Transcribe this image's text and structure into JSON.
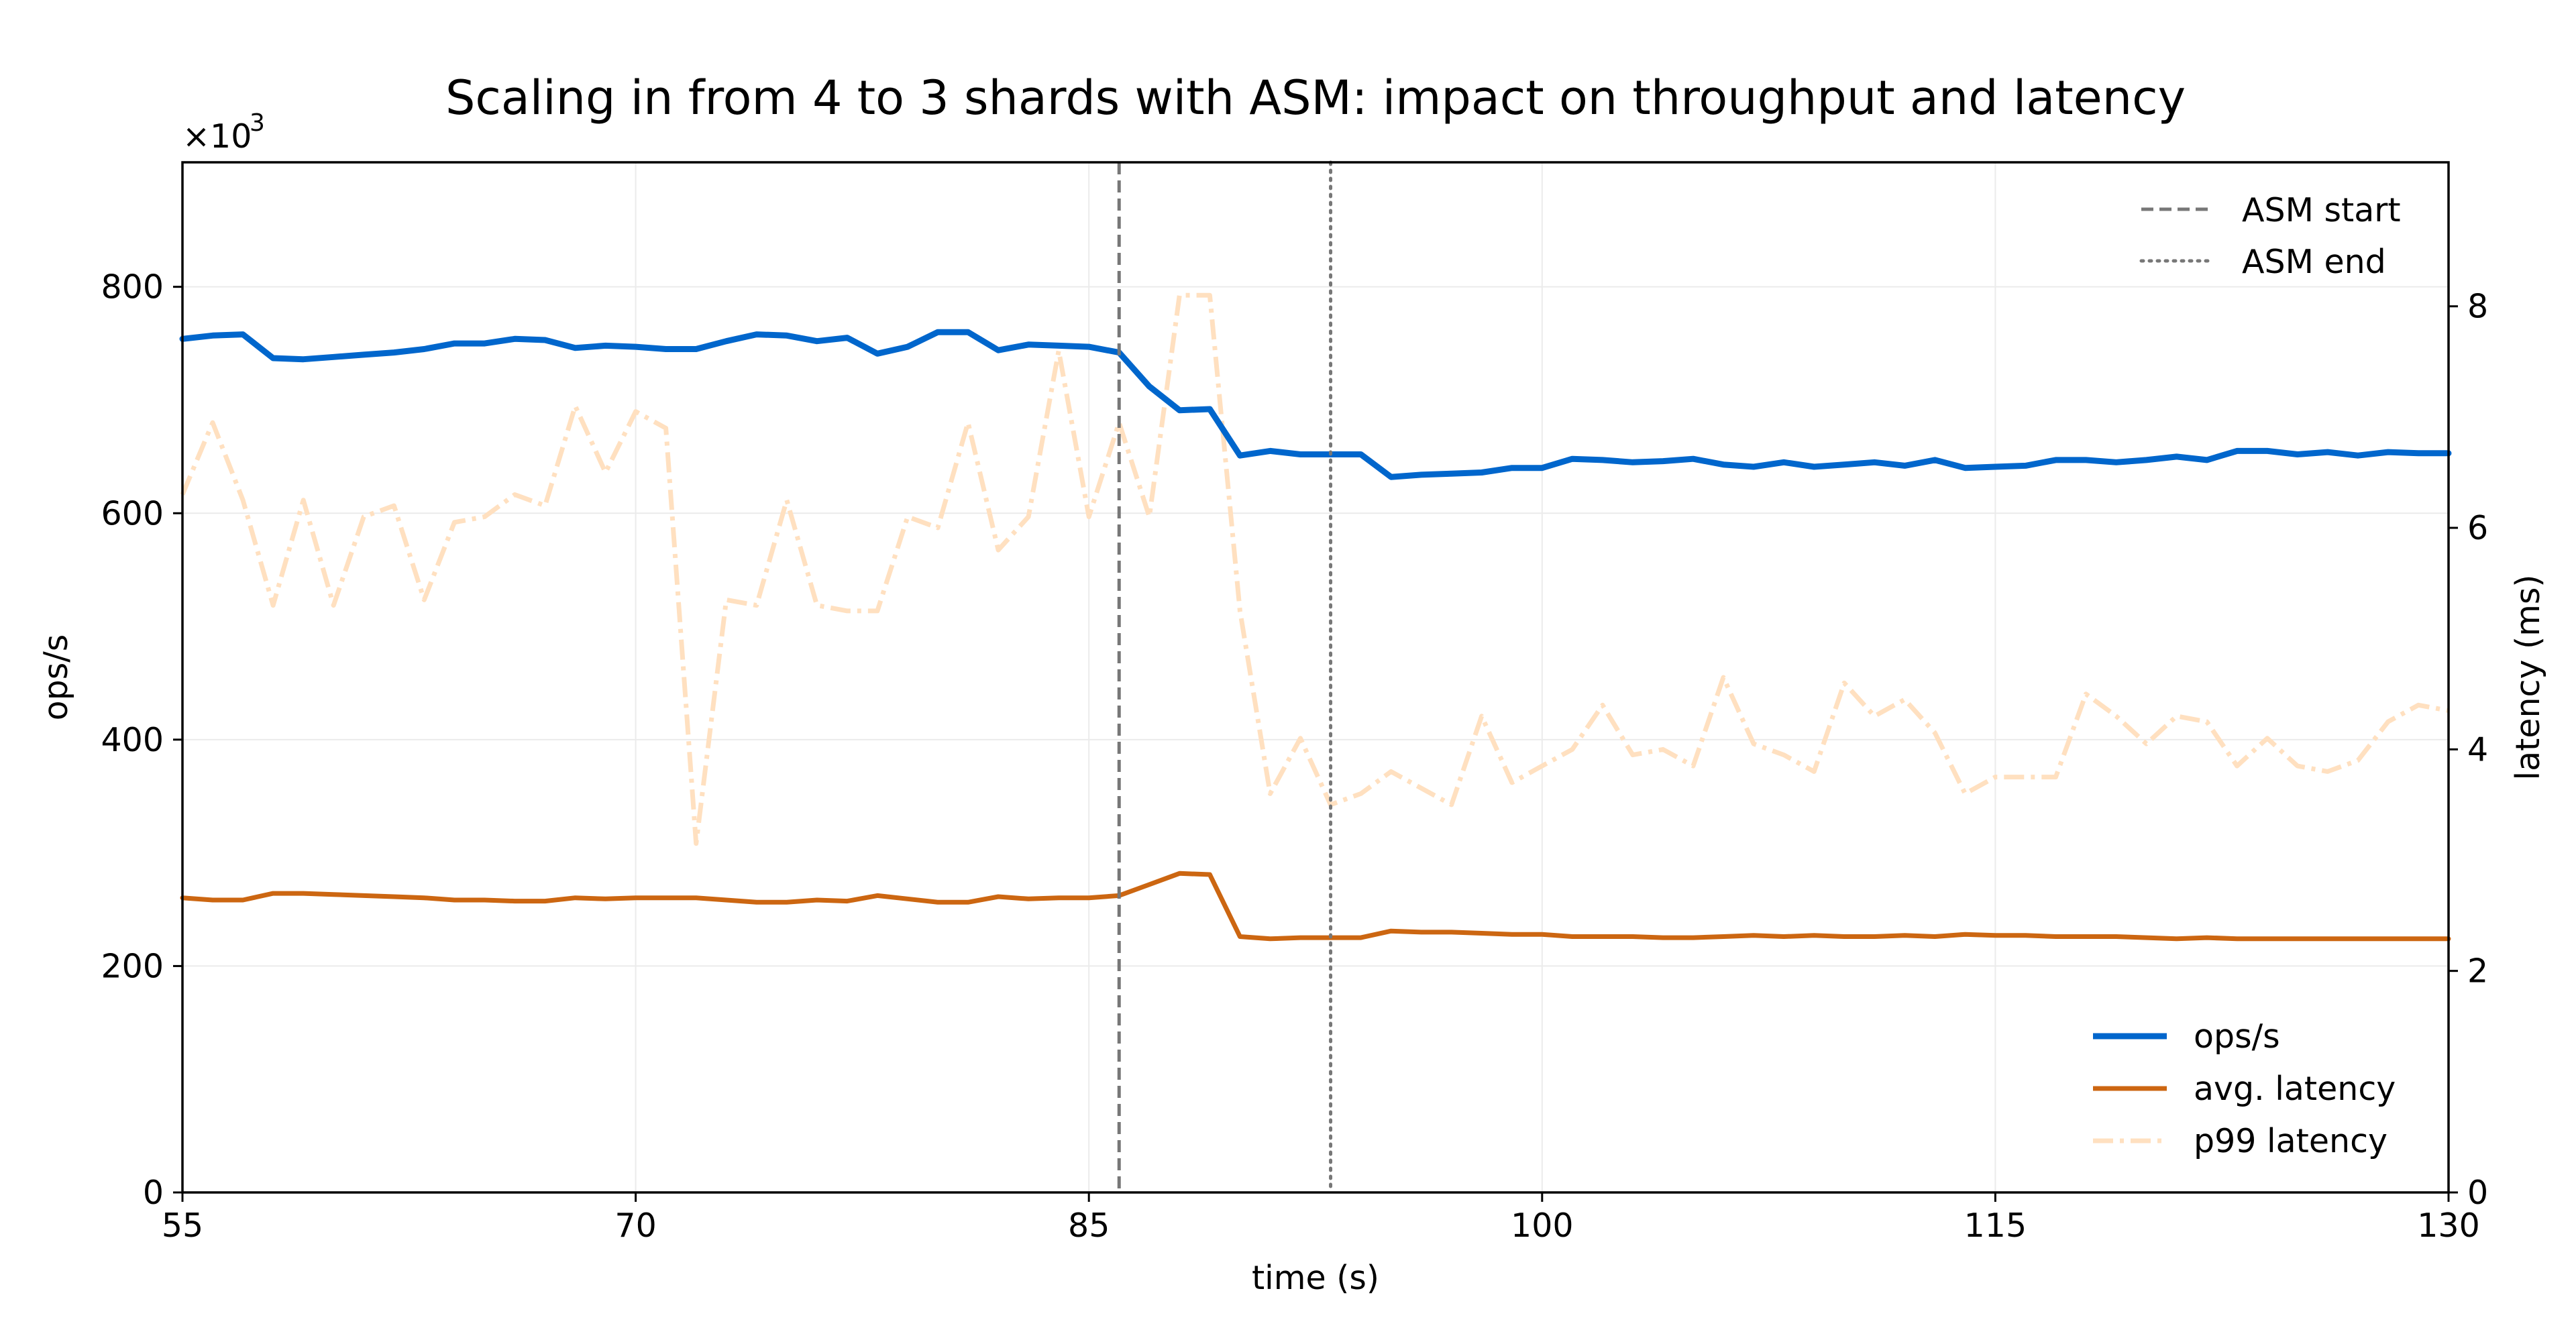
{
  "chart_data": {
    "type": "line",
    "title": "Scaling in from 4 to 3 shards with ASM: impact on throughput and latency",
    "xlabel": "time (s)",
    "ylabel_left": "ops/s",
    "ylabel_right": "latency (ms)",
    "left_axis_multiplier": "×10",
    "left_axis_multiplier_exp": "3",
    "xlim": [
      55,
      130
    ],
    "ylim_left": [
      0,
      910
    ],
    "ylim_right": [
      0,
      9.3
    ],
    "x_ticks": [
      55,
      70,
      85,
      100,
      115,
      130
    ],
    "y_left_ticks": [
      0,
      200,
      400,
      600,
      800
    ],
    "y_right_ticks": [
      0,
      2,
      4,
      6,
      8
    ],
    "grid": true,
    "colors": {
      "ops": "#0066cc",
      "avg": "#cc6611",
      "p99": "#ffe0c0",
      "asm": "#777777"
    },
    "vlines": [
      {
        "name": "ASM start",
        "x": 86,
        "style": "dashed"
      },
      {
        "name": "ASM end",
        "x": 93,
        "style": "dotted"
      }
    ],
    "legend_lines": {
      "placement": "top-right",
      "entries": [
        "ASM start",
        "ASM end"
      ]
    },
    "legend_series": {
      "placement": "bottom-right",
      "entries": [
        "ops/s",
        "avg. latency",
        "p99 latency"
      ]
    },
    "x": [
      55,
      56,
      57,
      58,
      59,
      60,
      61,
      62,
      63,
      64,
      65,
      66,
      67,
      68,
      69,
      70,
      71,
      72,
      73,
      74,
      75,
      76,
      77,
      78,
      79,
      80,
      81,
      82,
      83,
      84,
      85,
      86,
      87,
      88,
      89,
      90,
      91,
      92,
      93,
      94,
      95,
      96,
      97,
      98,
      99,
      100,
      101,
      102,
      103,
      104,
      105,
      106,
      107,
      108,
      109,
      110,
      111,
      112,
      113,
      114,
      115,
      116,
      117,
      118,
      119,
      120,
      121,
      122,
      123,
      124,
      125,
      126,
      127,
      128,
      129,
      130
    ],
    "series": [
      {
        "name": "ops/s",
        "axis": "left",
        "style": "solid",
        "values": [
          754,
          757,
          758,
          737,
          736,
          738,
          740,
          742,
          745,
          750,
          750,
          754,
          753,
          746,
          748,
          747,
          745,
          745,
          752,
          758,
          757,
          752,
          755,
          741,
          747,
          760,
          760,
          744,
          749,
          748,
          747,
          742,
          712,
          691,
          692,
          651,
          655,
          652,
          652,
          652,
          632,
          634,
          635,
          636,
          640,
          640,
          648,
          647,
          645,
          646,
          648,
          643,
          641,
          645,
          641,
          643,
          645,
          642,
          647,
          640,
          641,
          642,
          647,
          647,
          645,
          647,
          650,
          647,
          655,
          655,
          652,
          654,
          651,
          654,
          653,
          653
        ]
      },
      {
        "name": "avg. latency",
        "axis": "right",
        "style": "solid",
        "values": [
          2.66,
          2.64,
          2.64,
          2.7,
          2.7,
          2.69,
          2.68,
          2.67,
          2.66,
          2.64,
          2.64,
          2.63,
          2.63,
          2.66,
          2.65,
          2.66,
          2.66,
          2.66,
          2.64,
          2.62,
          2.62,
          2.64,
          2.63,
          2.68,
          2.65,
          2.62,
          2.62,
          2.67,
          2.65,
          2.66,
          2.66,
          2.68,
          2.78,
          2.88,
          2.87,
          2.31,
          2.29,
          2.3,
          2.3,
          2.3,
          2.36,
          2.35,
          2.35,
          2.34,
          2.33,
          2.33,
          2.31,
          2.31,
          2.31,
          2.3,
          2.3,
          2.31,
          2.32,
          2.31,
          2.32,
          2.31,
          2.31,
          2.32,
          2.31,
          2.33,
          2.32,
          2.32,
          2.31,
          2.31,
          2.31,
          2.3,
          2.29,
          2.3,
          2.29,
          2.29,
          2.29,
          2.29,
          2.29,
          2.29,
          2.29,
          2.29
        ]
      },
      {
        "name": "p99 latency",
        "axis": "right",
        "style": "dashdot",
        "values": [
          6.3,
          6.95,
          6.25,
          5.3,
          6.25,
          5.3,
          6.1,
          6.2,
          5.35,
          6.05,
          6.1,
          6.3,
          6.2,
          7.1,
          6.5,
          7.05,
          6.9,
          3.15,
          5.35,
          5.3,
          6.25,
          5.3,
          5.25,
          5.25,
          6.1,
          6.0,
          6.95,
          5.8,
          6.1,
          7.6,
          6.1,
          6.95,
          6.1,
          8.1,
          8.1,
          5.25,
          3.6,
          4.1,
          3.5,
          3.6,
          3.8,
          3.65,
          3.5,
          4.3,
          3.7,
          3.85,
          4.0,
          4.4,
          3.95,
          4.0,
          3.85,
          4.65,
          4.05,
          3.95,
          3.8,
          4.6,
          4.3,
          4.45,
          4.15,
          3.6,
          3.75,
          3.75,
          3.75,
          4.5,
          4.3,
          4.05,
          4.3,
          4.25,
          3.85,
          4.1,
          3.85,
          3.8,
          3.9,
          4.25,
          4.4,
          4.35
        ]
      }
    ]
  }
}
